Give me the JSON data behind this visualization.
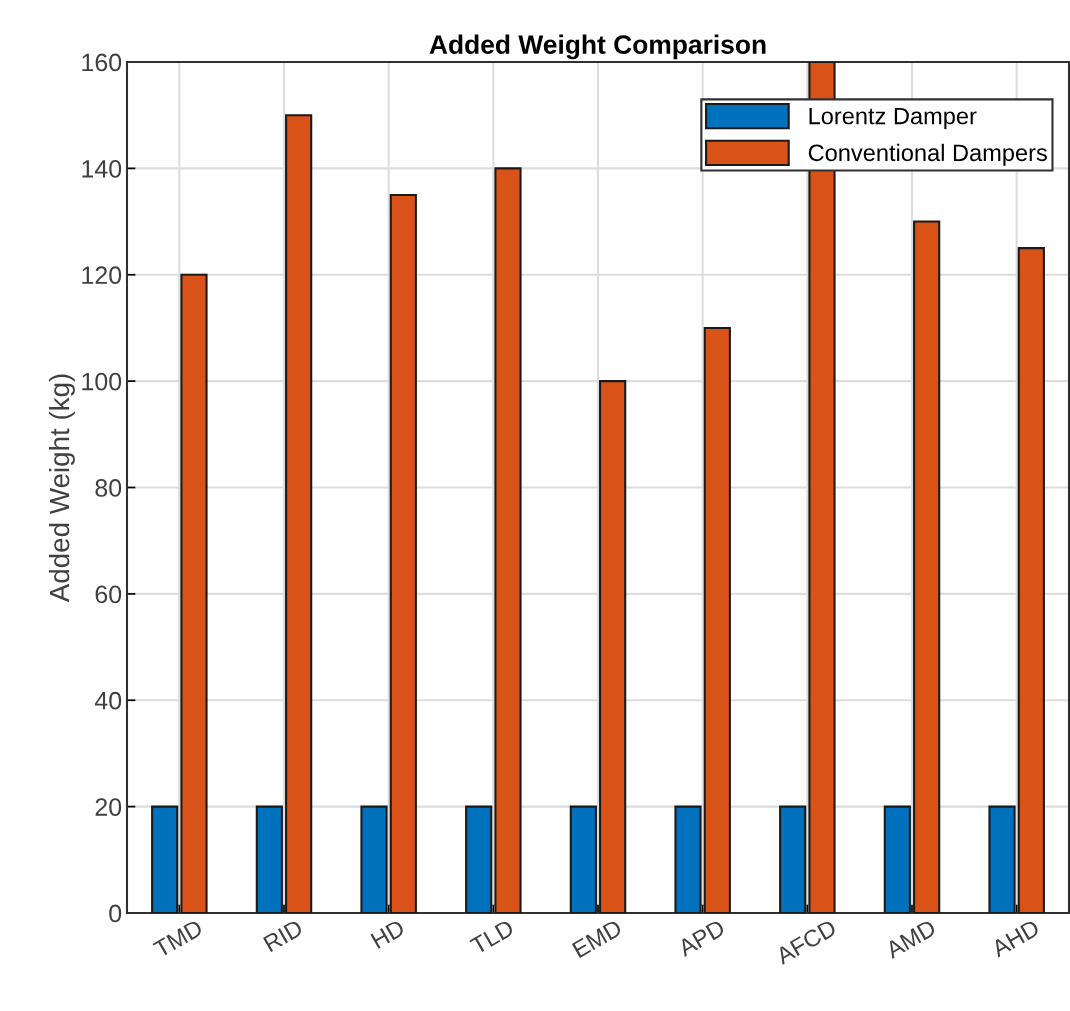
{
  "chart_data": {
    "type": "bar",
    "title": "Added Weight Comparison",
    "ylabel": "Added Weight (kg)",
    "categories": [
      "TMD",
      "RID",
      "HD",
      "TLD",
      "EMD",
      "APD",
      "AFCD",
      "AMD",
      "AHD"
    ],
    "series": [
      {
        "name": "Lorentz Damper",
        "color": "#0072bd",
        "values": [
          20,
          20,
          20,
          20,
          20,
          20,
          20,
          20,
          20
        ]
      },
      {
        "name": "Conventional Dampers",
        "color": "#d95319",
        "values": [
          120,
          150,
          135,
          140,
          100,
          110,
          160,
          130,
          125
        ]
      }
    ],
    "ylim": [
      0,
      160
    ],
    "yticks": [
      0,
      20,
      40,
      60,
      80,
      100,
      120,
      140,
      160
    ],
    "grid": true,
    "legend": "top right"
  }
}
